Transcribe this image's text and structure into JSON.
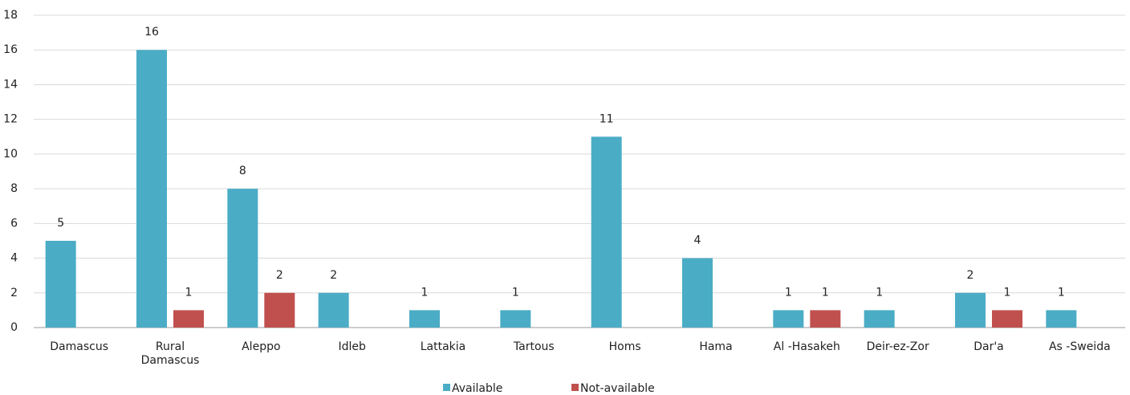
{
  "chart_data": {
    "type": "bar",
    "categories": [
      "Damascus",
      "Rural Damascus",
      "Aleppo",
      "Idleb",
      "Lattakia",
      "Tartous",
      "Homs",
      "Hama",
      "Al -Hasakeh",
      "Deir-ez-Zor",
      "Dar'a",
      "As -Sweida"
    ],
    "series": [
      {
        "name": "Available",
        "color": "#4bacc6",
        "values": [
          5,
          16,
          8,
          2,
          1,
          1,
          11,
          4,
          1,
          1,
          2,
          1
        ]
      },
      {
        "name": "Not-available",
        "color": "#c0504d",
        "values": [
          null,
          1,
          2,
          null,
          null,
          null,
          null,
          null,
          1,
          null,
          1,
          null
        ]
      }
    ],
    "ylim": [
      0,
      18
    ],
    "yticks": [
      0,
      2,
      4,
      6,
      8,
      10,
      12,
      14,
      16,
      18
    ],
    "grid": true,
    "legend": "bottom"
  }
}
